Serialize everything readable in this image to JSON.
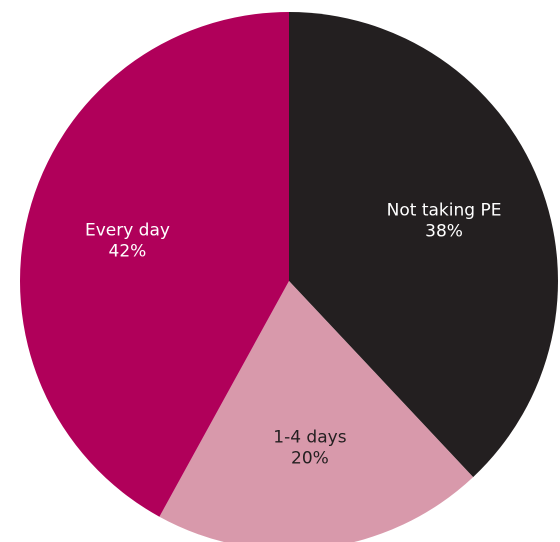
{
  "chart_data": {
    "type": "pie",
    "slices": [
      {
        "label": "Not taking PE",
        "value": 38,
        "value_label": "38%",
        "color": "#231f20",
        "text_color": "#ffffff"
      },
      {
        "label": "1-4 days",
        "value": 20,
        "value_label": "20%",
        "color": "#d899ab",
        "text_color": "#231f20"
      },
      {
        "label": "Every day",
        "value": 42,
        "value_label": "42%",
        "color": "#b0005a",
        "text_color": "#ffffff"
      }
    ]
  }
}
